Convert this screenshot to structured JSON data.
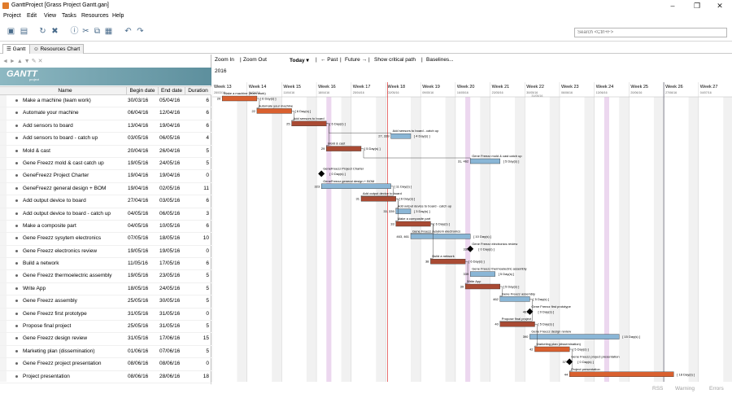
{
  "window": {
    "title": "GanttProject [Grass Project Gantt.gan]"
  },
  "menu": [
    "Project",
    "Edit",
    "View",
    "Tasks",
    "Resources",
    "Help"
  ],
  "search": {
    "placeholder": "Search <Ctrl+F>"
  },
  "tabs": [
    {
      "label": "Gantt",
      "active": true
    },
    {
      "label": "Resources Chart",
      "active": false
    }
  ],
  "logo": {
    "text": "GANTT",
    "sub": "project"
  },
  "columns": {
    "name": "Name",
    "begin": "Begin date",
    "end": "End date",
    "duration": "Duration"
  },
  "chart_toolbar": {
    "zoom_in": "Zoom In",
    "zoom_out": "Zoom Out",
    "today": "Today ▾",
    "past": "← Past",
    "future": "Future →",
    "critical": "Show critical path",
    "baselines": "Baselines..."
  },
  "year": "2016",
  "weeks": [
    {
      "label": "Week 13",
      "date": "28/03/16"
    },
    {
      "label": "Week 14",
      "date": "04/04/16"
    },
    {
      "label": "Week 15",
      "date": "11/04/16"
    },
    {
      "label": "Week 16",
      "date": "18/04/16"
    },
    {
      "label": "Week 17",
      "date": "25/04/16"
    },
    {
      "label": "Week 18",
      "date": "02/05/16"
    },
    {
      "label": "Week 19",
      "date": "09/05/16"
    },
    {
      "label": "Week 20",
      "date": "16/05/16"
    },
    {
      "label": "Week 21",
      "date": "23/05/16"
    },
    {
      "label": "Week 22",
      "date": "30/05/16"
    },
    {
      "label": "Week 23",
      "date": "06/06/16"
    },
    {
      "label": "Week 24",
      "date": "13/06/16"
    },
    {
      "label": "Week 25",
      "date": "20/06/16"
    },
    {
      "label": "Week 26",
      "date": "27/06/16"
    },
    {
      "label": "Week 27",
      "date": "04/07/16"
    }
  ],
  "milestone_headers": [
    "GeneFreezz Project Charter",
    "Gene Freezz electronics review",
    "Gene Freezz first prototype",
    "Gene Freezz project presentation"
  ],
  "chart_markers": [
    "31/05/16"
  ],
  "tasks": [
    {
      "name": "Make a machine (team work)",
      "begin": "30/03/16",
      "end": "05/04/16",
      "duration": "6",
      "color": "#d9602f",
      "bar_label": "Make a machine (team work)",
      "id": "20",
      "days": "[ 6 Day(s) ]"
    },
    {
      "name": "Automate your machine",
      "begin": "06/04/16",
      "end": "12/04/16",
      "duration": "6",
      "color": "#d9602f",
      "bar_label": "Automate your machine",
      "id": "22",
      "days": "[ 6 Day(s) ]"
    },
    {
      "name": "Add sensors to board",
      "begin": "13/04/16",
      "end": "19/04/16",
      "duration": "6",
      "color": "#a94a33",
      "bar_label": "Add sensors to board",
      "id": "25",
      "days": "[ 6 Day(s) ]"
    },
    {
      "name": "Add sensors to board - catch up",
      "begin": "03/05/16",
      "end": "06/05/16",
      "duration": "4",
      "color": "#8ab6d6",
      "bar_label": "Add sensors to board - catch up",
      "id": "27, 339",
      "days": "[ 4 Day(s) ]"
    },
    {
      "name": "Mold & cast",
      "begin": "20/04/16",
      "end": "26/04/16",
      "duration": "5",
      "color": "#a94a33",
      "bar_label": "Mold & cast",
      "id": "29",
      "days": "[ 5 Day(s) ]"
    },
    {
      "name": "Gene Freezz mold & cast catch up",
      "begin": "19/05/16",
      "end": "24/05/16",
      "duration": "5",
      "color": "#8ab6d6",
      "bar_label": "Gene Freezz mold & cast catch up",
      "id": "31, 462",
      "days": "[ 5 Day(s) ]"
    },
    {
      "name": "GeneFreezz Project Charter",
      "begin": "19/04/16",
      "end": "19/04/16",
      "duration": "0",
      "color": "#000000",
      "bar_label": "GeneFreezz Project Charter",
      "id": "",
      "days": "[ 0 Day(s) ]"
    },
    {
      "name": "GeneFreezz general design + BOM",
      "begin": "19/04/16",
      "end": "02/05/16",
      "duration": "11",
      "color": "#8ab6d6",
      "bar_label": "GeneFreezz general design + BOM",
      "id": "323",
      "days": "[ 11 Day(s) ]"
    },
    {
      "name": "Add output device to board",
      "begin": "27/04/16",
      "end": "03/05/16",
      "duration": "6",
      "color": "#a94a33",
      "bar_label": "Add output device to board",
      "id": "31",
      "days": "[ 6 Day(s) ]"
    },
    {
      "name": "Add output device to board - catch up",
      "begin": "04/05/16",
      "end": "06/05/16",
      "duration": "3",
      "color": "#8ab6d6",
      "bar_label": "Add output device to board - catch up",
      "id": "33, 339",
      "days": "[ 3 Day(s) ]"
    },
    {
      "name": "Make a composite part",
      "begin": "04/05/16",
      "end": "10/05/16",
      "duration": "6",
      "color": "#a94a33",
      "bar_label": "Make a composite part",
      "id": "33",
      "days": "[ 6 Day(s) ]"
    },
    {
      "name": "Gene Freezz sysytem electronics",
      "begin": "07/05/16",
      "end": "18/05/16",
      "duration": "10",
      "color": "#8ab6d6",
      "bar_label": "Gene Freezz sysytem electronics",
      "id": "463, 461",
      "days": "[ 10 Day(s) ]"
    },
    {
      "name": "Gene Freezz electronics review",
      "begin": "19/05/16",
      "end": "19/05/16",
      "duration": "0",
      "color": "#000000",
      "bar_label": "Gene Freezz electronics review",
      "id": "339",
      "days": "[ 0 Day(s) ]"
    },
    {
      "name": "Build a network",
      "begin": "11/05/16",
      "end": "17/05/16",
      "duration": "6",
      "color": "#a94a33",
      "bar_label": "Build a network",
      "id": "38",
      "days": "[ 6 Day(s) ]"
    },
    {
      "name": "Gene Freezz thermoelectric assembly",
      "begin": "19/05/16",
      "end": "23/05/16",
      "duration": "5",
      "color": "#8ab6d6",
      "bar_label": "Gene Freezz thermoelectric assembly",
      "id": "339",
      "days": "[ 5 Day(s) ]"
    },
    {
      "name": "Write App",
      "begin": "18/05/16",
      "end": "24/05/16",
      "duration": "5",
      "color": "#a94a33",
      "bar_label": "Write App",
      "id": "39",
      "days": "[ 5 Day(s) ]"
    },
    {
      "name": "Gene Freezz assembly",
      "begin": "25/05/16",
      "end": "30/05/16",
      "duration": "5",
      "color": "#8ab6d6",
      "bar_label": "Gene Freezz assembly",
      "id": "462",
      "days": "[ 5 Day(s) ]"
    },
    {
      "name": "Gene Freezz first prototype",
      "begin": "31/05/16",
      "end": "31/05/16",
      "duration": "0",
      "color": "#000000",
      "bar_label": "Gene Freezz first prototype",
      "id": "461",
      "days": "[ 0 Day(s) ]"
    },
    {
      "name": "Propose final project",
      "begin": "25/05/16",
      "end": "31/05/16",
      "duration": "5",
      "color": "#a94a33",
      "bar_label": "Propose final project",
      "id": "40",
      "days": "[ 5 Day(s) ]"
    },
    {
      "name": "Gene Freezz design review",
      "begin": "31/05/16",
      "end": "17/06/16",
      "duration": "15",
      "color": "#8ab6d6",
      "bar_label": "Gene Freezz design review",
      "id": "390",
      "days": "[ 15 Day(s) ]"
    },
    {
      "name": "Marketing plan (dissemination)",
      "begin": "01/06/16",
      "end": "07/06/16",
      "duration": "5",
      "color": "#d9602f",
      "bar_label": "Marketing plan (dissemination)",
      "id": "42",
      "days": "[ 5 Day(s) ]"
    },
    {
      "name": "Gene Freezz project presentation",
      "begin": "08/06/16",
      "end": "08/06/16",
      "duration": "0",
      "color": "#000000",
      "bar_label": "Gene Freezz project presentation",
      "id": "373",
      "days": "[ 0 Day(s) ]"
    },
    {
      "name": "Project presentation",
      "begin": "08/06/16",
      "end": "28/06/16",
      "duration": "18",
      "color": "#d9602f",
      "bar_label": "Project presentation",
      "id": "44",
      "days": "[ 18 Day(s) ]"
    }
  ],
  "status": [
    "RSS",
    "Warning",
    "Errors"
  ]
}
